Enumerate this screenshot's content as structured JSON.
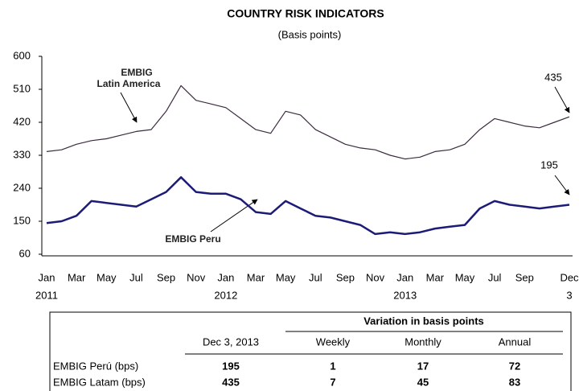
{
  "chart_data": {
    "type": "line",
    "title": "COUNTRY RISK INDICATORS",
    "subtitle": "(Basis points)",
    "categories": [
      "Jan",
      null,
      "Mar",
      null,
      "May",
      null,
      "Jul",
      null,
      "Sep",
      null,
      "Nov",
      null,
      "Jan",
      null,
      "Mar",
      null,
      "May",
      null,
      "Jul",
      null,
      "Sep",
      null,
      "Nov",
      null,
      "Jan",
      null,
      "Mar",
      null,
      "May",
      null,
      "Jul",
      null,
      "Sep",
      null,
      null,
      "Dec"
    ],
    "category_sublabels": [
      "2011",
      null,
      null,
      null,
      null,
      null,
      null,
      null,
      null,
      null,
      null,
      null,
      "2012",
      null,
      null,
      null,
      null,
      null,
      null,
      null,
      null,
      null,
      null,
      null,
      "2013",
      null,
      null,
      null,
      null,
      null,
      null,
      null,
      null,
      null,
      null,
      "3"
    ],
    "series": [
      {
        "name": "EMBIG Latin America",
        "color": "#3b2b3f",
        "values": [
          340,
          345,
          360,
          370,
          375,
          385,
          395,
          400,
          450,
          520,
          480,
          470,
          460,
          430,
          400,
          390,
          450,
          440,
          400,
          380,
          360,
          350,
          345,
          330,
          320,
          325,
          340,
          345,
          360,
          400,
          430,
          420,
          410,
          405,
          420,
          435
        ]
      },
      {
        "name": "EMBIG Peru",
        "color": "#1c1c78",
        "values": [
          145,
          150,
          165,
          205,
          200,
          195,
          190,
          210,
          230,
          270,
          230,
          225,
          225,
          210,
          175,
          170,
          205,
          185,
          165,
          160,
          150,
          140,
          115,
          120,
          115,
          120,
          130,
          135,
          140,
          185,
          205,
          195,
          190,
          185,
          190,
          195
        ]
      }
    ],
    "annotations": [
      {
        "text": "EMBIG",
        "text2": "Latin America"
      },
      {
        "text": "EMBIG Peru"
      },
      {
        "text": "435"
      },
      {
        "text": "195"
      }
    ],
    "ylim": [
      60,
      600
    ],
    "yticks": [
      60,
      150,
      240,
      330,
      420,
      510,
      600
    ],
    "grid": false,
    "table": {
      "group_header": "Variation in basis points",
      "columns": [
        "Dec 3, 2013",
        "Weekly",
        "Monthly",
        "Annual"
      ],
      "rows": [
        {
          "label": "EMBIG Perú (bps)",
          "values": [
            195,
            1,
            17,
            72
          ]
        },
        {
          "label": "EMBIG Latam (bps)",
          "values": [
            435,
            7,
            45,
            83
          ]
        }
      ]
    }
  }
}
